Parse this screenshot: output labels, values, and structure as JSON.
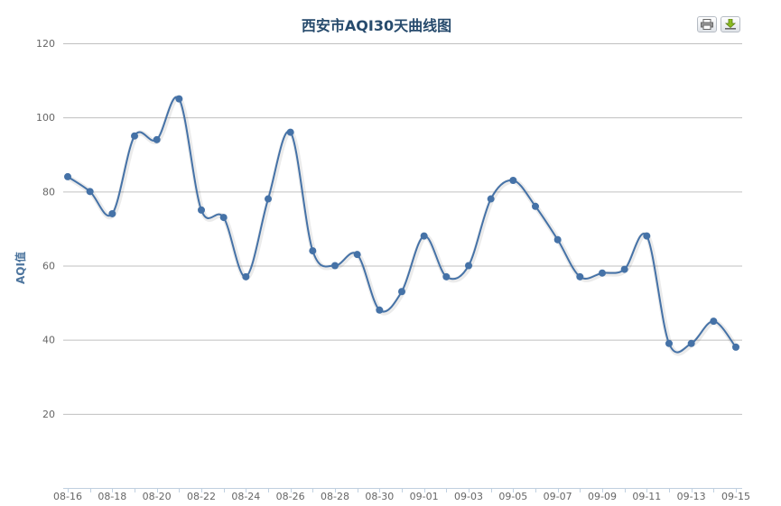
{
  "chart_data": {
    "type": "line",
    "title": "西安市AQI30天曲线图",
    "xlabel": "",
    "ylabel": "AQI值",
    "ylim": [
      0,
      120
    ],
    "yticks": [
      20,
      40,
      60,
      80,
      100,
      120
    ],
    "x": [
      "08-16",
      "08-17",
      "08-18",
      "08-19",
      "08-20",
      "08-21",
      "08-22",
      "08-23",
      "08-24",
      "08-25",
      "08-26",
      "08-27",
      "08-28",
      "08-29",
      "08-30",
      "08-31",
      "09-01",
      "09-02",
      "09-03",
      "09-04",
      "09-05",
      "09-06",
      "09-07",
      "09-08",
      "09-09",
      "09-10",
      "09-11",
      "09-12",
      "09-13",
      "09-14",
      "09-15"
    ],
    "xtick_labels": [
      "08-16",
      "08-18",
      "08-20",
      "08-22",
      "08-24",
      "08-26",
      "08-28",
      "08-30",
      "09-01",
      "09-03",
      "09-05",
      "09-07",
      "09-09",
      "09-11",
      "09-13",
      "09-15"
    ],
    "series": [
      {
        "values": [
          84,
          80,
          74,
          95,
          94,
          105,
          75,
          73,
          57,
          78,
          96,
          64,
          60,
          63,
          48,
          53,
          68,
          57,
          60,
          78,
          83,
          76,
          67,
          57,
          58,
          59,
          68,
          39,
          39,
          45,
          38
        ]
      }
    ],
    "grid": true,
    "legend": "none",
    "colors": {
      "line": "#4572a7",
      "grid": "#c0c0c0",
      "axis": "#c0d0e0",
      "title": "#274b6d",
      "tick_label": "#666666"
    }
  },
  "toolbar": {
    "print_icon": "printer-icon",
    "download_icon": "download-icon"
  }
}
